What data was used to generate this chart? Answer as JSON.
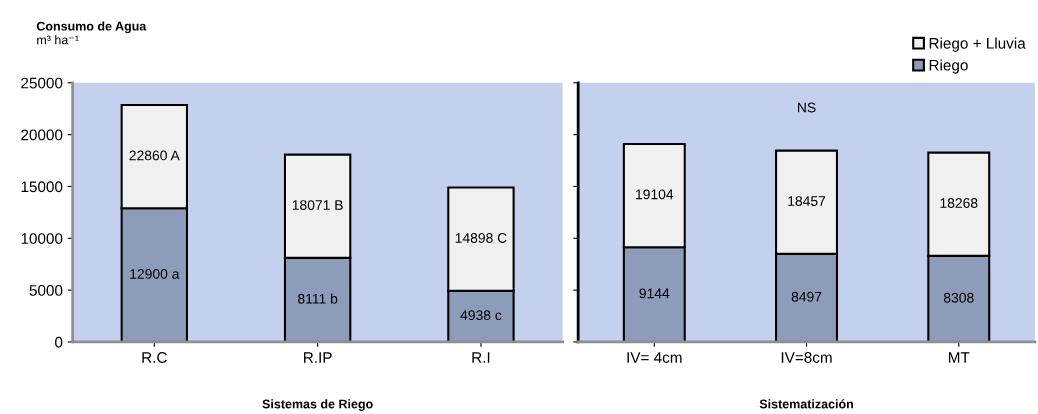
{
  "chart_data": [
    {
      "type": "bar",
      "stacked": true,
      "title": "Consumo de Agua",
      "ylabel": "m³ ha⁻¹",
      "xlabel": "Sistemas de Riego",
      "categories": [
        "R.C",
        "R.IP",
        "R.I"
      ],
      "series": [
        {
          "color": "#8d9cba",
          "values": [
            12900,
            8111,
            4938
          ],
          "value_labels": [
            "12900 a",
            "8111 b",
            "4938 c"
          ]
        },
        {
          "color": "#f0f0f0",
          "values": [
            9960,
            9960,
            9960
          ]
        }
      ],
      "totals": [
        "22860 A",
        "18071 B",
        "14898 C"
      ],
      "ylim": [
        0,
        25000
      ],
      "yticks": [
        0,
        5000,
        10000,
        15000,
        20000,
        25000
      ]
    },
    {
      "type": "bar",
      "stacked": true,
      "xlabel": "Sistematización",
      "categories": [
        "IV= 4cm",
        "IV=8cm",
        "MT"
      ],
      "series": [
        {
          "name": "Riego",
          "color": "#8d9cba",
          "values": [
            9144,
            8497,
            8308
          ],
          "value_labels": [
            "9144",
            "8497",
            "8308"
          ]
        },
        {
          "name": "Riego + Lluvia",
          "color": "#f0f0f0",
          "values": [
            9960,
            9960,
            9960
          ]
        }
      ],
      "totals": [
        "19104",
        "18457",
        "18268"
      ],
      "ylim": [
        0,
        25000
      ],
      "yticks": [
        0,
        5000,
        10000,
        15000,
        20000,
        25000
      ],
      "tick_labels": "x",
      "legend": "top right",
      "annotations": [
        "NS"
      ]
    }
  ]
}
